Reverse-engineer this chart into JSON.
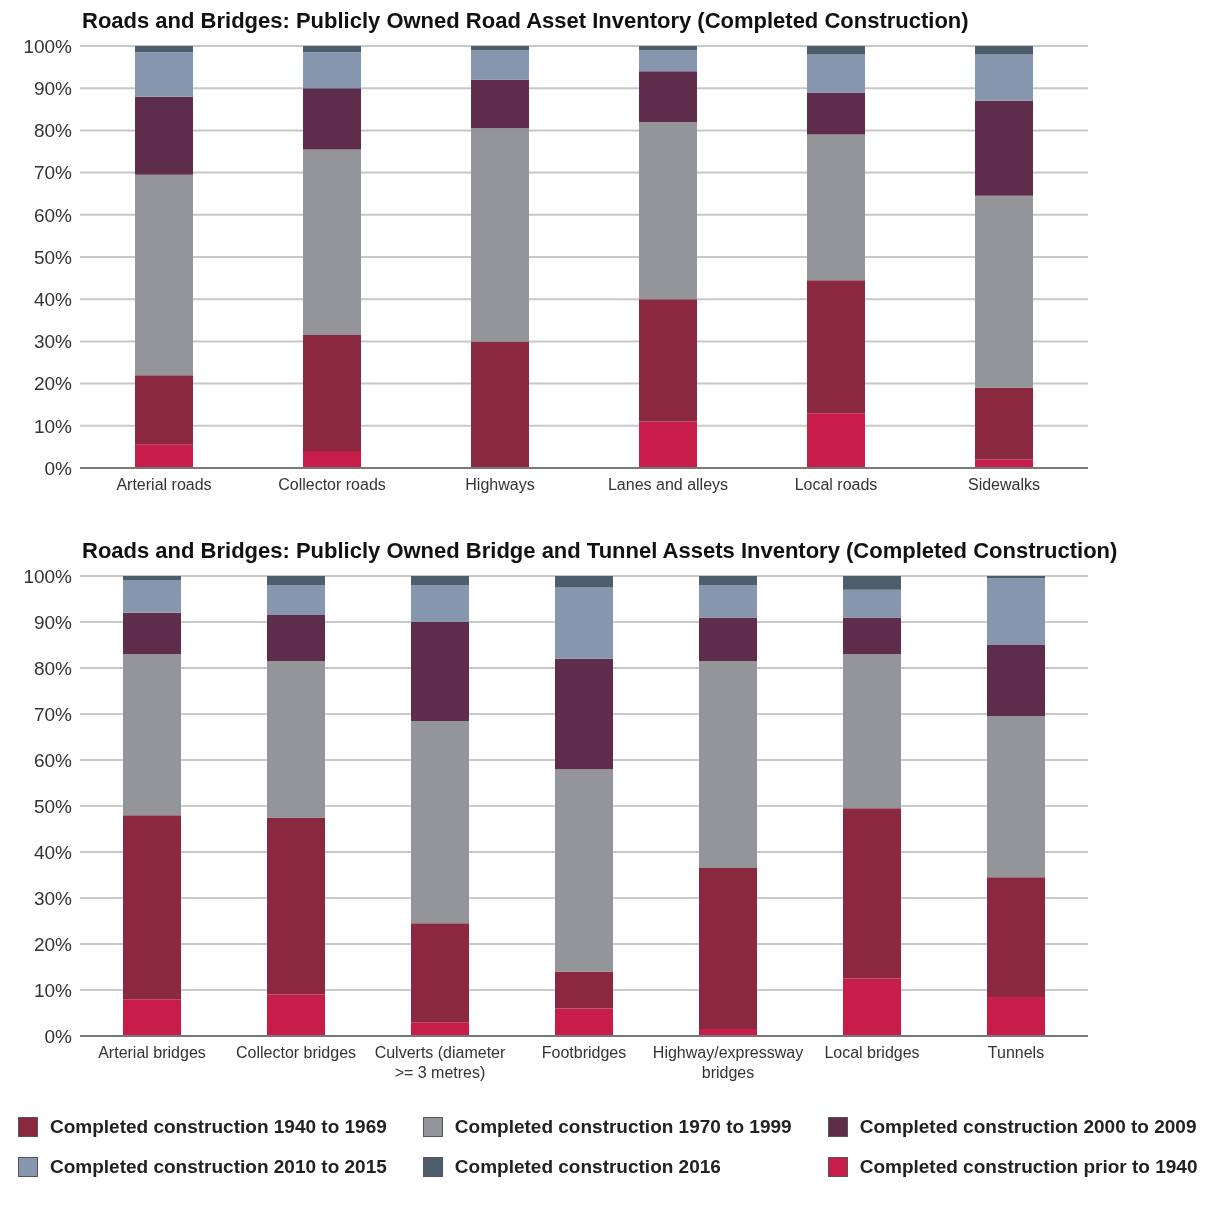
{
  "chart_data": [
    {
      "type": "bar",
      "stacked": true,
      "title": "Roads and Bridges: Publicly Owned Road Asset Inventory (Completed Construction)",
      "categories": [
        "Arterial roads",
        "Collector roads",
        "Highways",
        "Lanes and alleys",
        "Local roads",
        "Sidewalks"
      ],
      "series": [
        {
          "color": "#c81d4a",
          "values": [
            5.5,
            4,
            0,
            11,
            13,
            2
          ]
        },
        {
          "color": "#8a2840",
          "values": [
            16.5,
            27.5,
            30,
            29,
            31.5,
            17
          ]
        },
        {
          "color": "#939598",
          "values": [
            47.5,
            44,
            50.5,
            42,
            34.5,
            45.5
          ]
        },
        {
          "color": "#5e2d4c",
          "values": [
            18.5,
            14.5,
            11.5,
            12,
            10,
            22.5
          ]
        },
        {
          "color": "#8696ae",
          "values": [
            10.5,
            8.5,
            7,
            5,
            9,
            11
          ]
        },
        {
          "color": "#4e5d6c",
          "values": [
            1.5,
            1.5,
            1,
            1,
            2,
            2
          ]
        }
      ],
      "ylim": [
        0,
        100
      ],
      "yticks": [
        {
          "value": 0,
          "label": "0%"
        },
        {
          "value": 10,
          "label": "10%"
        },
        {
          "value": 20,
          "label": "20%"
        },
        {
          "value": 30,
          "label": "30%"
        },
        {
          "value": 40,
          "label": "40%"
        },
        {
          "value": 50,
          "label": "50%"
        },
        {
          "value": 60,
          "label": "60%"
        },
        {
          "value": 70,
          "label": "70%"
        },
        {
          "value": 80,
          "label": "80%"
        },
        {
          "value": 90,
          "label": "90%"
        },
        {
          "value": 100,
          "label": "100%"
        }
      ],
      "grid": "y"
    },
    {
      "type": "bar",
      "stacked": true,
      "title": "Roads and Bridges: Publicly Owned Bridge and Tunnel Assets Inventory (Completed Construction)",
      "categories": [
        "Arterial bridges",
        "Collector bridges",
        "Culverts (diameter >= 3 metres)",
        "Footbridges",
        "Highway/expressway bridges",
        "Local bridges",
        "Tunnels"
      ],
      "series": [
        {
          "name": "Completed construction prior to 1940",
          "color": "#c81d4a",
          "values": [
            8,
            9,
            3,
            6,
            1.5,
            12.5,
            8.5
          ]
        },
        {
          "name": "Completed construction 1940 to 1969",
          "color": "#8a2840",
          "values": [
            40,
            38.5,
            21.5,
            8,
            35,
            37,
            26
          ]
        },
        {
          "name": "Completed construction 1970 to 1999",
          "color": "#939598",
          "values": [
            35,
            34,
            44,
            44,
            45,
            33.5,
            35
          ]
        },
        {
          "name": "Completed construction 2000 to 2009",
          "color": "#5e2d4c",
          "values": [
            9,
            10,
            21.5,
            24,
            9.5,
            8,
            15.5
          ]
        },
        {
          "name": "Completed construction 2010 to 2015",
          "color": "#8696ae",
          "values": [
            7,
            6.5,
            8,
            15.5,
            7,
            6,
            14.5
          ]
        },
        {
          "name": "Completed construction 2016",
          "color": "#4e5d6c",
          "values": [
            1,
            2,
            2,
            2.5,
            2,
            3,
            0.5
          ]
        }
      ],
      "ylim": [
        0,
        100
      ],
      "yticks": [
        {
          "value": 0,
          "label": "0%"
        },
        {
          "value": 10,
          "label": "10%"
        },
        {
          "value": 20,
          "label": "20%"
        },
        {
          "value": 30,
          "label": "30%"
        },
        {
          "value": 40,
          "label": "40%"
        },
        {
          "value": 50,
          "label": "50%"
        },
        {
          "value": 60,
          "label": "60%"
        },
        {
          "value": 70,
          "label": "70%"
        },
        {
          "value": 80,
          "label": "80%"
        },
        {
          "value": 90,
          "label": "90%"
        },
        {
          "value": 100,
          "label": "100%"
        }
      ],
      "grid": "y",
      "legend": "bottom"
    }
  ]
}
